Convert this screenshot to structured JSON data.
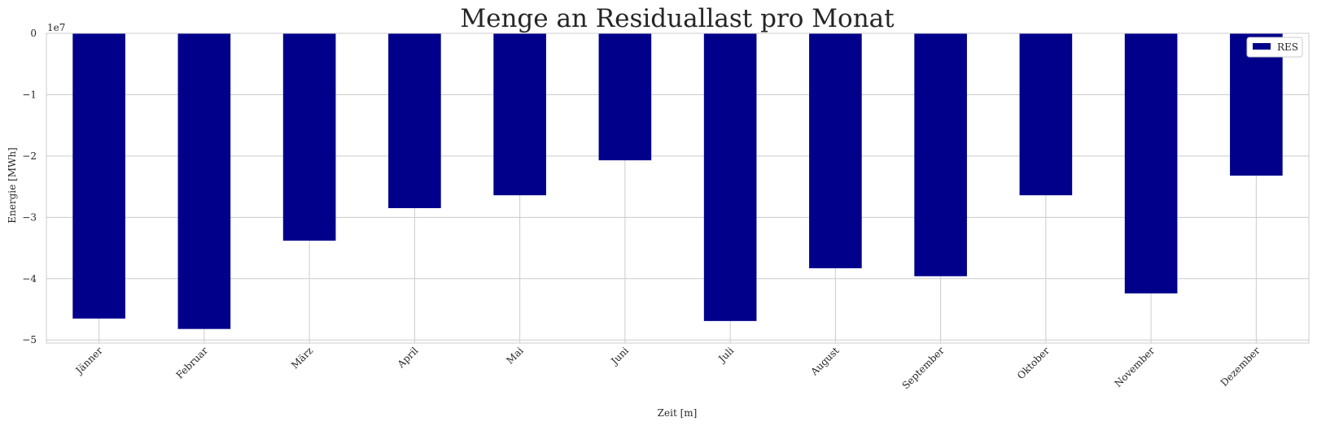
{
  "chart_data": {
    "type": "bar",
    "title": "Menge an Residuallast pro Monat",
    "xlabel": "Zeit [m]",
    "ylabel": "Energie [MWh]",
    "y_offset_label": "1e7",
    "categories": [
      "Jänner",
      "Februar",
      "März",
      "April",
      "Mai",
      "Juni",
      "Juli",
      "August",
      "September",
      "Oktober",
      "November",
      "Dezember"
    ],
    "series": [
      {
        "name": "RES",
        "color": "#00008b",
        "values": [
          -46500000,
          -48200000,
          -33800000,
          -28500000,
          -26400000,
          -20700000,
          -46900000,
          -38300000,
          -39600000,
          -26400000,
          -42400000,
          -23200000
        ]
      }
    ],
    "yticks": [
      0,
      -1,
      -2,
      -3,
      -4,
      -5
    ],
    "ylim": [
      -50500000,
      0
    ],
    "grid": true,
    "legend_position": "top-right"
  }
}
